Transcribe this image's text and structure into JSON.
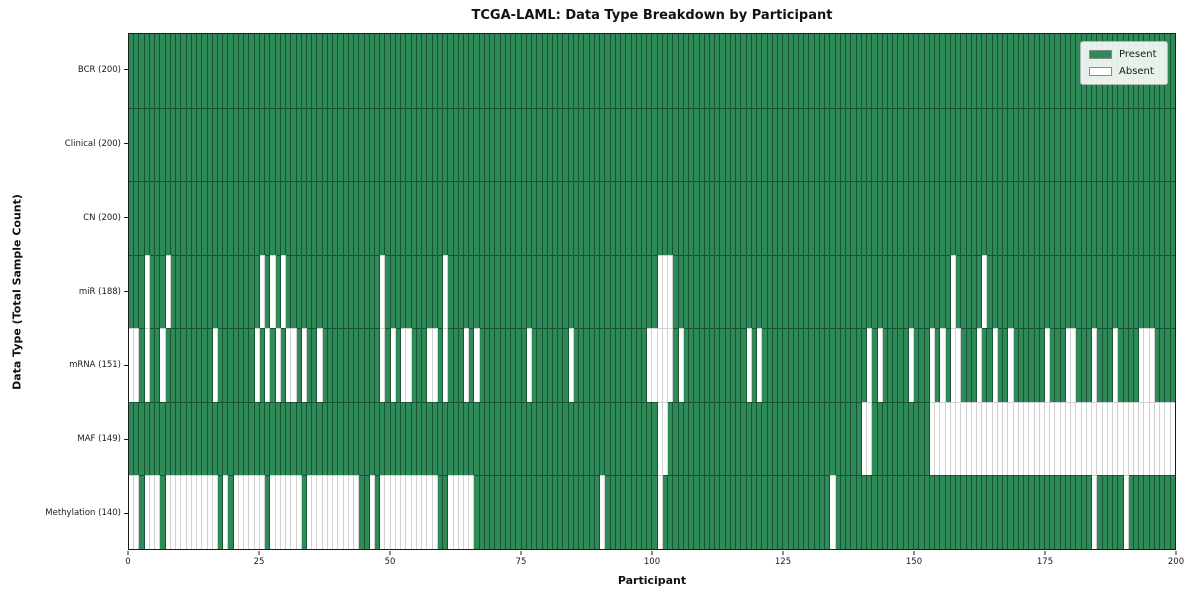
{
  "title": "TCGA-LAML: Data Type Breakdown by Participant",
  "axes": {
    "x_label": "Participant",
    "y_label": "Data Type (Total Sample Count)",
    "x_ticks": [
      0,
      25,
      50,
      75,
      100,
      125,
      150,
      175,
      200
    ]
  },
  "legend": {
    "present_label": "Present",
    "absent_label": "Absent"
  },
  "colors": {
    "present": "#2e8b57",
    "absent": "#ffffff",
    "present_edge": "rgba(8,40,22,0.55)",
    "absent_edge": "rgba(0,0,0,0.18)"
  },
  "chart_data": {
    "type": "heatmap",
    "title": "TCGA-LAML: Data Type Breakdown by Participant",
    "xlabel": "Participant",
    "ylabel": "Data Type (Total Sample Count)",
    "x_range": [
      0,
      200
    ],
    "n_participants": 200,
    "legend_entries": [
      "Present",
      "Absent"
    ],
    "legend_position": "upper right",
    "rows": [
      {
        "label": "BCR (200)",
        "data_type": "BCR",
        "present_count": 200,
        "absent_participants": []
      },
      {
        "label": "Clinical (200)",
        "data_type": "Clinical",
        "present_count": 200,
        "absent_participants": []
      },
      {
        "label": "CN (200)",
        "data_type": "CN",
        "present_count": 200,
        "absent_participants": []
      },
      {
        "label": "miR (188)",
        "data_type": "miR",
        "present_count": 188,
        "absent_participants": [
          3,
          7,
          25,
          27,
          29,
          48,
          60,
          101,
          102,
          103,
          157,
          163
        ]
      },
      {
        "label": "mRNA (151)",
        "data_type": "mRNA",
        "present_count": 151,
        "absent_participants": [
          0,
          1,
          3,
          6,
          16,
          24,
          26,
          28,
          30,
          31,
          33,
          36,
          48,
          50,
          52,
          53,
          57,
          58,
          60,
          64,
          66,
          76,
          84,
          99,
          100,
          101,
          102,
          103,
          105,
          118,
          120,
          141,
          143,
          149,
          153,
          155,
          157,
          158,
          162,
          165,
          168,
          175,
          179,
          180,
          184,
          188,
          193,
          194,
          195
        ]
      },
      {
        "label": "MAF (149)",
        "data_type": "MAF",
        "present_count": 149,
        "absent_participants": [
          101,
          102,
          140,
          141,
          153,
          154,
          155,
          156,
          157,
          158,
          159,
          160,
          161,
          162,
          163,
          164,
          165,
          166,
          167,
          168,
          169,
          170,
          171,
          172,
          173,
          174,
          175,
          176,
          177,
          178,
          179,
          180,
          181,
          182,
          183,
          184,
          185,
          186,
          187,
          188,
          189,
          190,
          191,
          192,
          193,
          194,
          195,
          196,
          197,
          198,
          199
        ]
      },
      {
        "label": "Methylation (140)",
        "data_type": "Methylation",
        "present_count": 140,
        "absent_participants": [
          0,
          1,
          3,
          4,
          5,
          7,
          8,
          9,
          10,
          11,
          12,
          13,
          14,
          15,
          16,
          18,
          20,
          21,
          22,
          23,
          24,
          25,
          27,
          28,
          29,
          30,
          31,
          32,
          34,
          35,
          36,
          37,
          38,
          39,
          40,
          41,
          42,
          43,
          46,
          48,
          49,
          50,
          51,
          52,
          53,
          54,
          55,
          56,
          57,
          58,
          61,
          62,
          63,
          64,
          65,
          90,
          101,
          134,
          184,
          190
        ]
      }
    ]
  }
}
